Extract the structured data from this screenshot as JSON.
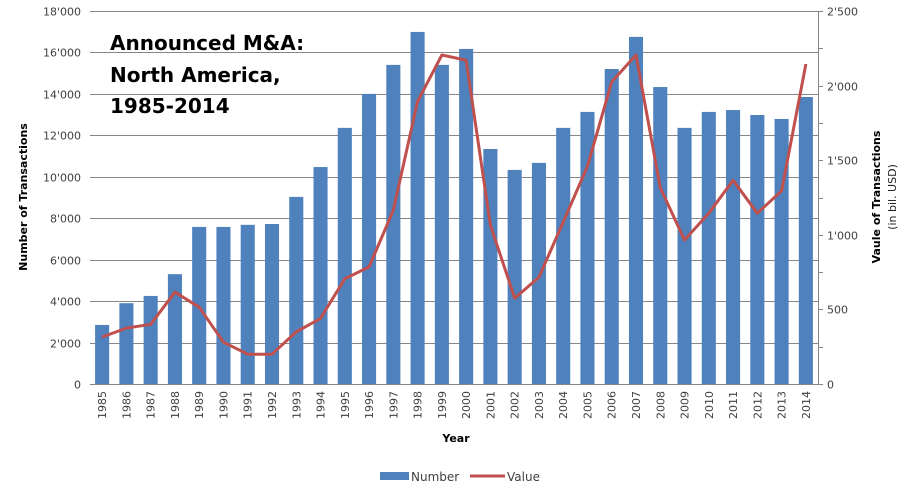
{
  "chart_data": {
    "type": "bar",
    "combo": "bar+line (dual axis)",
    "title_lines": [
      "Announced M&A:",
      "North America,",
      "1985-2014"
    ],
    "xlabel": "Year",
    "ylabel_left": "Number of Transactions",
    "ylabel_right": "Vaule of Transactions",
    "ylabel_right_sub": "(in bil. USD)",
    "categories": [
      "1985",
      "1986",
      "1987",
      "1988",
      "1989",
      "1990",
      "1991",
      "1992",
      "1993",
      "1994",
      "1995",
      "1996",
      "1997",
      "1998",
      "1999",
      "2000",
      "2001",
      "2002",
      "2003",
      "2004",
      "2005",
      "2006",
      "2007",
      "2008",
      "2009",
      "2010",
      "2011",
      "2012",
      "2013",
      "2014"
    ],
    "ylim_left": [
      0,
      18000
    ],
    "yticks_left": [
      0,
      2000,
      4000,
      6000,
      8000,
      10000,
      12000,
      14000,
      16000,
      18000
    ],
    "ytick_labels_left": [
      "0",
      "2'000",
      "4'000",
      "6'000",
      "8'000",
      "10'000",
      "12'000",
      "14'000",
      "16'000",
      "18'000"
    ],
    "ylim_right": [
      0,
      2500
    ],
    "yticks_right": [
      0,
      500,
      1000,
      1500,
      2000,
      2500
    ],
    "ytick_labels_right": [
      "0",
      "500",
      "1'000",
      "1'500",
      "2'000",
      "2'500"
    ],
    "grid": true,
    "legend_position": "bottom",
    "series": [
      {
        "name": "Number",
        "type": "bar",
        "axis": "left",
        "color": "#4f81bd",
        "values": [
          2850,
          3900,
          4250,
          5300,
          7580,
          7580,
          7680,
          7720,
          9030,
          10470,
          12360,
          14000,
          15400,
          16990,
          15400,
          16170,
          11340,
          10330,
          10670,
          12360,
          13130,
          15200,
          16750,
          14330,
          12360,
          13130,
          13220,
          12980,
          12790,
          13850
        ]
      },
      {
        "name": "Value",
        "type": "line",
        "axis": "right",
        "color": "#c0504d",
        "values": [
          315,
          375,
          400,
          615,
          515,
          280,
          200,
          200,
          350,
          440,
          705,
          785,
          1165,
          1895,
          2205,
          2170,
          1065,
          575,
          715,
          1085,
          1460,
          2025,
          2205,
          1315,
          965,
          1145,
          1365,
          1145,
          1295,
          2145
        ]
      }
    ]
  }
}
